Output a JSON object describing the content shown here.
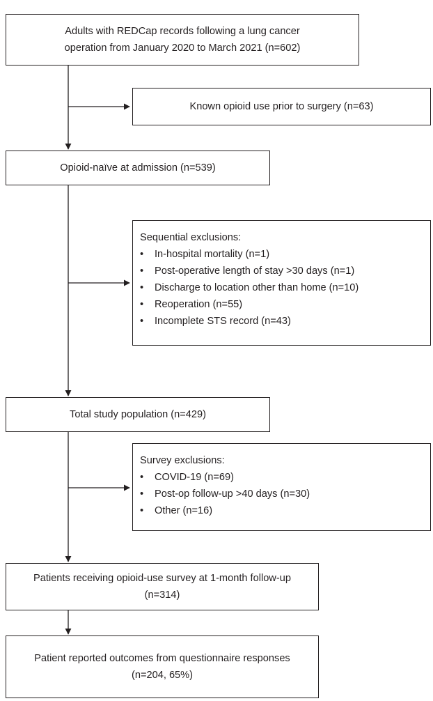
{
  "nodes": {
    "n1": {
      "lines": [
        "Adults with REDCap records following a lung cancer",
        "operation from January 2020 to March 2021 (n=602)"
      ]
    },
    "n2": {
      "lines": [
        "Known opioid use prior to surgery (n=63)"
      ]
    },
    "n3": {
      "lines": [
        "Opioid-naïve at admission (n=539)"
      ]
    },
    "n4": {
      "heading": "Sequential exclusions:",
      "items": [
        "In-hospital mortality (n=1)",
        "Post-operative length of stay >30 days (n=1)",
        "Discharge to location other than home (n=10)",
        "Reoperation (n=55)",
        "Incomplete STS record (n=43)"
      ]
    },
    "n5": {
      "lines": [
        "Total study population (n=429)"
      ]
    },
    "n6": {
      "heading": "Survey exclusions:",
      "items": [
        "COVID-19 (n=69)",
        "Post-op follow-up >40 days (n=30)",
        "Other (n=16)"
      ]
    },
    "n7": {
      "lines": [
        "Patients receiving opioid-use survey at 1-month follow-up",
        "(n=314)"
      ]
    },
    "n8": {
      "lines": [
        "Patient reported outcomes from questionnaire responses",
        "(n=204, 65%)"
      ]
    }
  },
  "bullet_glyph": "•"
}
